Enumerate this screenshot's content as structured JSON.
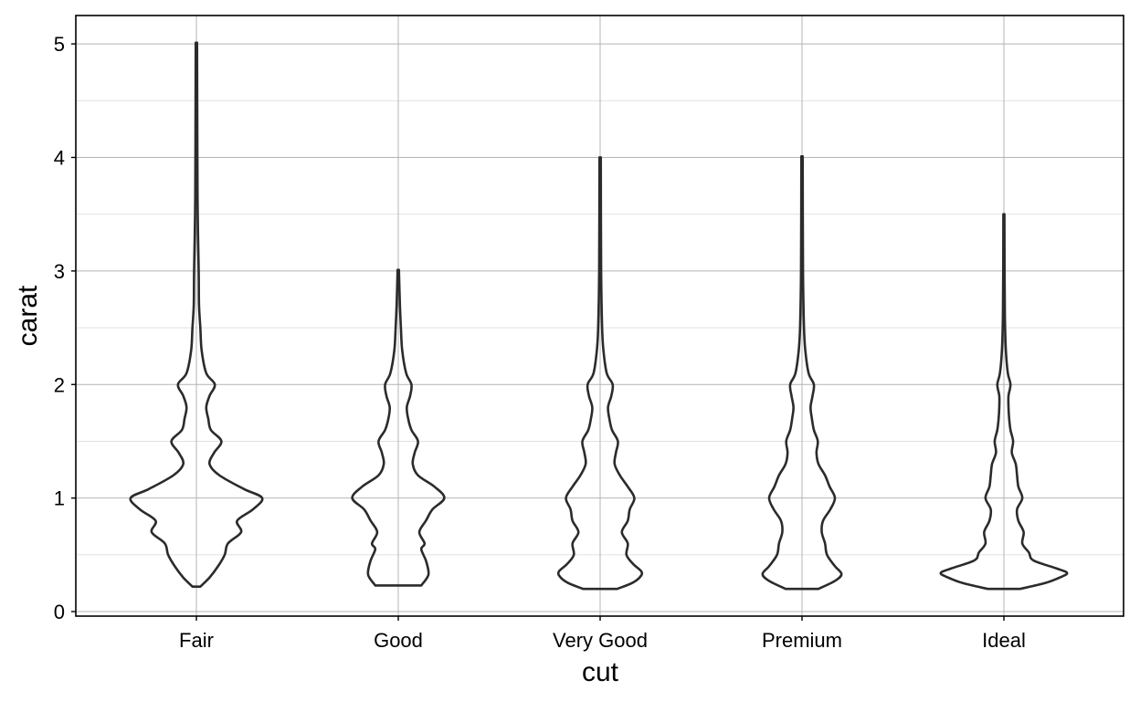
{
  "chart_data": {
    "type": "violin",
    "xlabel": "cut",
    "ylabel": "carat",
    "ylim": [
      -0.04,
      5.25
    ],
    "y_ticks": [
      0,
      1,
      2,
      3,
      4,
      5
    ],
    "y_minor_ticks": [
      0.5,
      1.5,
      2.5,
      3.5,
      4.5
    ],
    "grid": true,
    "categories": [
      "Fair",
      "Good",
      "Very Good",
      "Premium",
      "Ideal"
    ],
    "violins": [
      {
        "category": "Fair",
        "min": 0.22,
        "max": 5.01,
        "density_profile": [
          [
            0.22,
            0.06
          ],
          [
            0.3,
            0.2
          ],
          [
            0.4,
            0.33
          ],
          [
            0.5,
            0.43
          ],
          [
            0.6,
            0.48
          ],
          [
            0.7,
            0.68
          ],
          [
            0.8,
            0.62
          ],
          [
            0.9,
            0.86
          ],
          [
            1.0,
            1.0
          ],
          [
            1.08,
            0.72
          ],
          [
            1.2,
            0.35
          ],
          [
            1.3,
            0.2
          ],
          [
            1.4,
            0.27
          ],
          [
            1.5,
            0.38
          ],
          [
            1.6,
            0.22
          ],
          [
            1.7,
            0.18
          ],
          [
            1.8,
            0.15
          ],
          [
            1.9,
            0.2
          ],
          [
            2.0,
            0.28
          ],
          [
            2.1,
            0.15
          ],
          [
            2.3,
            0.08
          ],
          [
            2.5,
            0.06
          ],
          [
            2.7,
            0.04
          ],
          [
            3.0,
            0.035
          ],
          [
            3.5,
            0.02
          ],
          [
            4.0,
            0.015
          ],
          [
            5.01,
            0.01
          ]
        ]
      },
      {
        "category": "Good",
        "min": 0.23,
        "max": 3.01,
        "density_profile": [
          [
            0.23,
            0.35
          ],
          [
            0.3,
            0.44
          ],
          [
            0.35,
            0.46
          ],
          [
            0.45,
            0.42
          ],
          [
            0.55,
            0.35
          ],
          [
            0.6,
            0.4
          ],
          [
            0.7,
            0.32
          ],
          [
            0.8,
            0.42
          ],
          [
            0.9,
            0.52
          ],
          [
            1.0,
            0.7
          ],
          [
            1.1,
            0.55
          ],
          [
            1.2,
            0.3
          ],
          [
            1.3,
            0.22
          ],
          [
            1.4,
            0.25
          ],
          [
            1.5,
            0.3
          ],
          [
            1.6,
            0.2
          ],
          [
            1.7,
            0.15
          ],
          [
            1.8,
            0.13
          ],
          [
            1.9,
            0.18
          ],
          [
            2.0,
            0.2
          ],
          [
            2.1,
            0.12
          ],
          [
            2.3,
            0.06
          ],
          [
            2.5,
            0.04
          ],
          [
            2.7,
            0.025
          ],
          [
            3.01,
            0.01
          ]
        ]
      },
      {
        "category": "Very Good",
        "min": 0.2,
        "max": 4.0,
        "density_profile": [
          [
            0.2,
            0.26
          ],
          [
            0.25,
            0.48
          ],
          [
            0.3,
            0.6
          ],
          [
            0.35,
            0.63
          ],
          [
            0.42,
            0.5
          ],
          [
            0.5,
            0.4
          ],
          [
            0.6,
            0.42
          ],
          [
            0.7,
            0.33
          ],
          [
            0.8,
            0.42
          ],
          [
            0.9,
            0.45
          ],
          [
            1.0,
            0.52
          ],
          [
            1.1,
            0.42
          ],
          [
            1.2,
            0.3
          ],
          [
            1.3,
            0.22
          ],
          [
            1.4,
            0.24
          ],
          [
            1.5,
            0.27
          ],
          [
            1.6,
            0.18
          ],
          [
            1.7,
            0.14
          ],
          [
            1.8,
            0.12
          ],
          [
            1.9,
            0.17
          ],
          [
            2.0,
            0.19
          ],
          [
            2.1,
            0.1
          ],
          [
            2.3,
            0.05
          ],
          [
            2.5,
            0.03
          ],
          [
            3.0,
            0.015
          ],
          [
            4.0,
            0.01
          ]
        ]
      },
      {
        "category": "Premium",
        "min": 0.2,
        "max": 4.01,
        "density_profile": [
          [
            0.2,
            0.25
          ],
          [
            0.27,
            0.5
          ],
          [
            0.33,
            0.6
          ],
          [
            0.4,
            0.5
          ],
          [
            0.5,
            0.38
          ],
          [
            0.6,
            0.35
          ],
          [
            0.7,
            0.3
          ],
          [
            0.8,
            0.32
          ],
          [
            0.9,
            0.43
          ],
          [
            1.0,
            0.5
          ],
          [
            1.1,
            0.42
          ],
          [
            1.2,
            0.35
          ],
          [
            1.3,
            0.25
          ],
          [
            1.4,
            0.22
          ],
          [
            1.5,
            0.24
          ],
          [
            1.6,
            0.18
          ],
          [
            1.7,
            0.15
          ],
          [
            1.8,
            0.13
          ],
          [
            1.9,
            0.16
          ],
          [
            2.0,
            0.18
          ],
          [
            2.1,
            0.1
          ],
          [
            2.3,
            0.05
          ],
          [
            2.5,
            0.03
          ],
          [
            3.0,
            0.015
          ],
          [
            4.01,
            0.01
          ]
        ]
      },
      {
        "category": "Ideal",
        "min": 0.2,
        "max": 3.5,
        "density_profile": [
          [
            0.2,
            0.25
          ],
          [
            0.25,
            0.62
          ],
          [
            0.3,
            0.85
          ],
          [
            0.34,
            0.96
          ],
          [
            0.38,
            0.8
          ],
          [
            0.45,
            0.45
          ],
          [
            0.52,
            0.38
          ],
          [
            0.6,
            0.28
          ],
          [
            0.7,
            0.3
          ],
          [
            0.8,
            0.22
          ],
          [
            0.9,
            0.2
          ],
          [
            1.0,
            0.28
          ],
          [
            1.1,
            0.22
          ],
          [
            1.2,
            0.2
          ],
          [
            1.3,
            0.18
          ],
          [
            1.4,
            0.12
          ],
          [
            1.5,
            0.14
          ],
          [
            1.6,
            0.1
          ],
          [
            1.7,
            0.08
          ],
          [
            1.8,
            0.07
          ],
          [
            1.9,
            0.07
          ],
          [
            2.0,
            0.1
          ],
          [
            2.1,
            0.06
          ],
          [
            2.3,
            0.03
          ],
          [
            2.6,
            0.015
          ],
          [
            3.0,
            0.01
          ],
          [
            3.5,
            0.008
          ]
        ]
      }
    ]
  }
}
